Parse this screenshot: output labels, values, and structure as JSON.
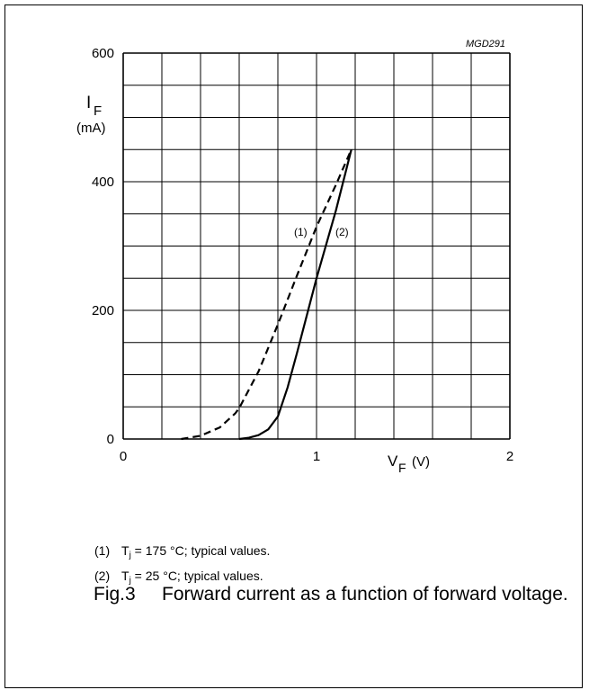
{
  "code": "MGD291",
  "chart_data": {
    "type": "line",
    "ylabel_main": "I",
    "ylabel_sub": "F",
    "yunit": "(mA)",
    "xlabel_main": "V",
    "xlabel_sub": "F",
    "xunit": "(V)",
    "xlim": [
      0,
      2
    ],
    "ylim": [
      0,
      600
    ],
    "xticks": [
      0,
      1,
      2
    ],
    "yticks": [
      0,
      200,
      400,
      600
    ],
    "grid": true,
    "series": [
      {
        "name": "(1)",
        "style": "dashed",
        "points": [
          [
            0.3,
            0
          ],
          [
            0.4,
            5
          ],
          [
            0.5,
            18
          ],
          [
            0.58,
            40
          ],
          [
            0.6,
            48
          ],
          [
            0.7,
            105
          ],
          [
            0.8,
            178
          ],
          [
            0.9,
            255
          ],
          [
            1.0,
            330
          ],
          [
            1.1,
            395
          ],
          [
            1.18,
            450
          ]
        ]
      },
      {
        "name": "(2)",
        "style": "solid",
        "points": [
          [
            0.6,
            0
          ],
          [
            0.65,
            2
          ],
          [
            0.7,
            6
          ],
          [
            0.75,
            15
          ],
          [
            0.8,
            35
          ],
          [
            0.85,
            80
          ],
          [
            0.9,
            135
          ],
          [
            1.0,
            250
          ],
          [
            1.1,
            355
          ],
          [
            1.18,
            450
          ]
        ]
      }
    ]
  },
  "legend": {
    "item1": {
      "num": "(1)",
      "pre": "T",
      "sub": "j",
      "post": " = 175 °C; typical values."
    },
    "item2": {
      "num": "(2)",
      "pre": "T",
      "sub": "j",
      "post": " = 25 °C; typical values."
    }
  },
  "caption": {
    "fig": "Fig.3",
    "text": "Forward current as a function of forward voltage."
  }
}
